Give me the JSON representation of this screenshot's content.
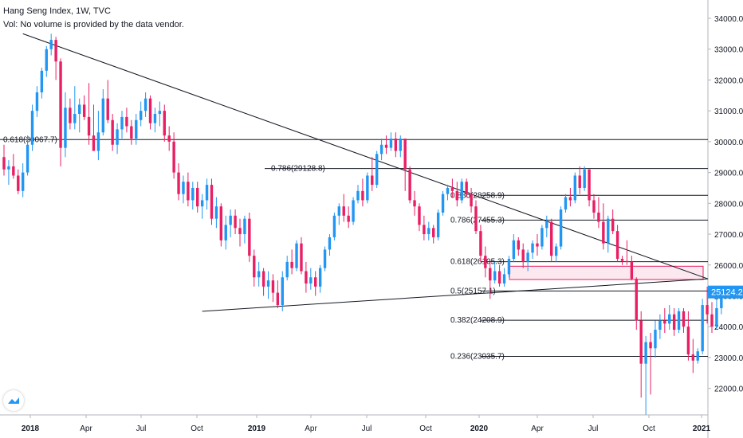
{
  "chart_data": {
    "type": "candlestick",
    "title": "Hang Seng Index, 1W, TVC",
    "subtitle": "Vol: No volume is provided by the data vendor.",
    "x_axis": {
      "tick_labels": [
        "2018",
        "Apr",
        "Jul",
        "Oct",
        "2019",
        "Apr",
        "Jul",
        "Oct",
        "2020",
        "Apr",
        "Jul",
        "Oct",
        "2021"
      ]
    },
    "y_axis": {
      "range": [
        21000,
        34600
      ],
      "tick_values": [
        22000,
        23000,
        24000,
        25000,
        26000,
        27000,
        28000,
        29000,
        30000,
        31000,
        32000,
        33000,
        34000
      ],
      "tick_labels": [
        "22000.0",
        "23000.0",
        "24000.0",
        "25000.0",
        "26000.0",
        "27000.0",
        "28000.0",
        "29000.0",
        "30000.0",
        "31000.0",
        "32000.0",
        "33000.0",
        "34000.0"
      ],
      "last_price_label": "25124.2",
      "position": "right"
    },
    "colors": {
      "up": "#2196f3",
      "down": "#e91e63",
      "line": "#131722",
      "zone_fill": "#fce4ec",
      "zone_border": "#e91e63",
      "price_tag": "#2196f3"
    },
    "fib_levels": [
      {
        "label": "0.618(30067.7)",
        "value": 30067.7
      },
      {
        "label": "0.786(29128.8)",
        "value": 29128.8
      },
      {
        "label": "0.886(28258.9)",
        "value": 28258.9
      },
      {
        "label": "0.786(27455.3)",
        "value": 27455.3
      },
      {
        "label": "0.618(26105.3)",
        "value": 26105.3
      },
      {
        "label": "0.5(25157.1)",
        "value": 25157.1
      },
      {
        "label": "0.382(24208.9)",
        "value": 24208.9
      },
      {
        "label": "0.236(23035.7)",
        "value": 23035.7
      }
    ],
    "zone": {
      "y_top": 25960,
      "y_bottom": 25530
    },
    "trendlines": [
      {
        "from": {
          "week": 4,
          "value": 33500
        },
        "to": {
          "week": 156,
          "value": 25550
        }
      },
      {
        "from": {
          "week": 42,
          "value": 24500
        },
        "to": {
          "week": 156,
          "value": 25550
        }
      }
    ],
    "candles": [
      {
        "o": 29500,
        "h": 29900,
        "l": 28900,
        "c": 29100
      },
      {
        "o": 29100,
        "h": 29400,
        "l": 28600,
        "c": 29200
      },
      {
        "o": 29200,
        "h": 29600,
        "l": 28800,
        "c": 28900
      },
      {
        "o": 28900,
        "h": 29100,
        "l": 28300,
        "c": 28400
      },
      {
        "o": 28400,
        "h": 29300,
        "l": 28200,
        "c": 29000
      },
      {
        "o": 29000,
        "h": 30200,
        "l": 28900,
        "c": 29900
      },
      {
        "o": 29900,
        "h": 31200,
        "l": 29700,
        "c": 31000
      },
      {
        "o": 31000,
        "h": 31800,
        "l": 30800,
        "c": 31600
      },
      {
        "o": 31600,
        "h": 32400,
        "l": 31400,
        "c": 32300
      },
      {
        "o": 32300,
        "h": 33100,
        "l": 32100,
        "c": 33000
      },
      {
        "o": 33000,
        "h": 33500,
        "l": 32800,
        "c": 33300
      },
      {
        "o": 33300,
        "h": 33400,
        "l": 32000,
        "c": 32600
      },
      {
        "o": 32600,
        "h": 32700,
        "l": 29200,
        "c": 29800
      },
      {
        "o": 29800,
        "h": 31600,
        "l": 29500,
        "c": 31100
      },
      {
        "o": 31100,
        "h": 31400,
        "l": 30400,
        "c": 30600
      },
      {
        "o": 30600,
        "h": 31800,
        "l": 30400,
        "c": 30900
      },
      {
        "o": 30900,
        "h": 31400,
        "l": 30300,
        "c": 31200
      },
      {
        "o": 31200,
        "h": 31500,
        "l": 30700,
        "c": 30800
      },
      {
        "o": 30800,
        "h": 31900,
        "l": 29900,
        "c": 30200
      },
      {
        "o": 30200,
        "h": 31200,
        "l": 29800,
        "c": 29700
      },
      {
        "o": 29700,
        "h": 31000,
        "l": 29400,
        "c": 30300
      },
      {
        "o": 30300,
        "h": 31700,
        "l": 30200,
        "c": 31400
      },
      {
        "o": 31400,
        "h": 32000,
        "l": 30600,
        "c": 30700
      },
      {
        "o": 30700,
        "h": 30900,
        "l": 29700,
        "c": 29900
      },
      {
        "o": 29900,
        "h": 30600,
        "l": 29600,
        "c": 30400
      },
      {
        "o": 30400,
        "h": 31000,
        "l": 30100,
        "c": 30800
      },
      {
        "o": 30800,
        "h": 31100,
        "l": 30300,
        "c": 30500
      },
      {
        "o": 30500,
        "h": 30700,
        "l": 29900,
        "c": 30100
      },
      {
        "o": 30100,
        "h": 30900,
        "l": 29900,
        "c": 30700
      },
      {
        "o": 30700,
        "h": 31300,
        "l": 30500,
        "c": 31000
      },
      {
        "o": 31000,
        "h": 31600,
        "l": 30800,
        "c": 31400
      },
      {
        "o": 31400,
        "h": 31500,
        "l": 30400,
        "c": 30600
      },
      {
        "o": 30600,
        "h": 31100,
        "l": 30300,
        "c": 30900
      },
      {
        "o": 30900,
        "h": 31300,
        "l": 30500,
        "c": 31000
      },
      {
        "o": 31000,
        "h": 31200,
        "l": 30000,
        "c": 30200
      },
      {
        "o": 30200,
        "h": 30500,
        "l": 29700,
        "c": 30000
      },
      {
        "o": 30000,
        "h": 30300,
        "l": 28800,
        "c": 29000
      },
      {
        "o": 29000,
        "h": 29300,
        "l": 28100,
        "c": 28300
      },
      {
        "o": 28300,
        "h": 28900,
        "l": 28000,
        "c": 28700
      },
      {
        "o": 28700,
        "h": 29000,
        "l": 27900,
        "c": 28100
      },
      {
        "o": 28100,
        "h": 28700,
        "l": 27800,
        "c": 28500
      },
      {
        "o": 28500,
        "h": 28700,
        "l": 27700,
        "c": 27900
      },
      {
        "o": 27900,
        "h": 28300,
        "l": 27500,
        "c": 28100
      },
      {
        "o": 28100,
        "h": 28800,
        "l": 27800,
        "c": 28600
      },
      {
        "o": 28600,
        "h": 28800,
        "l": 27300,
        "c": 27500
      },
      {
        "o": 27500,
        "h": 28200,
        "l": 27200,
        "c": 27900
      },
      {
        "o": 27900,
        "h": 28000,
        "l": 26600,
        "c": 26800
      },
      {
        "o": 26800,
        "h": 27600,
        "l": 26500,
        "c": 27300
      },
      {
        "o": 27300,
        "h": 27800,
        "l": 26900,
        "c": 27600
      },
      {
        "o": 27600,
        "h": 27800,
        "l": 27000,
        "c": 27200
      },
      {
        "o": 27200,
        "h": 27500,
        "l": 26600,
        "c": 27000
      },
      {
        "o": 27000,
        "h": 27600,
        "l": 26700,
        "c": 27500
      },
      {
        "o": 27500,
        "h": 27700,
        "l": 26100,
        "c": 26300
      },
      {
        "o": 26300,
        "h": 26500,
        "l": 25300,
        "c": 25600
      },
      {
        "o": 25600,
        "h": 26100,
        "l": 25300,
        "c": 25800
      },
      {
        "o": 25800,
        "h": 25900,
        "l": 25000,
        "c": 25300
      },
      {
        "o": 25300,
        "h": 25800,
        "l": 24900,
        "c": 25500
      },
      {
        "o": 25500,
        "h": 25700,
        "l": 24800,
        "c": 25100
      },
      {
        "o": 25100,
        "h": 25500,
        "l": 24600,
        "c": 24700
      },
      {
        "o": 24700,
        "h": 25800,
        "l": 24500,
        "c": 25600
      },
      {
        "o": 25600,
        "h": 26300,
        "l": 25500,
        "c": 26100
      },
      {
        "o": 26100,
        "h": 26500,
        "l": 25700,
        "c": 25900
      },
      {
        "o": 25900,
        "h": 26800,
        "l": 25800,
        "c": 26700
      },
      {
        "o": 26700,
        "h": 26900,
        "l": 25700,
        "c": 25800
      },
      {
        "o": 25800,
        "h": 26100,
        "l": 25100,
        "c": 25400
      },
      {
        "o": 25400,
        "h": 25900,
        "l": 25200,
        "c": 25600
      },
      {
        "o": 25600,
        "h": 25800,
        "l": 25000,
        "c": 25300
      },
      {
        "o": 25300,
        "h": 26000,
        "l": 25100,
        "c": 25900
      },
      {
        "o": 25900,
        "h": 26600,
        "l": 25800,
        "c": 26500
      },
      {
        "o": 26500,
        "h": 27000,
        "l": 26300,
        "c": 26900
      },
      {
        "o": 26900,
        "h": 27700,
        "l": 26800,
        "c": 27600
      },
      {
        "o": 27600,
        "h": 28000,
        "l": 27300,
        "c": 27900
      },
      {
        "o": 27900,
        "h": 28300,
        "l": 27400,
        "c": 27600
      },
      {
        "o": 27600,
        "h": 27900,
        "l": 27200,
        "c": 27400
      },
      {
        "o": 27400,
        "h": 28200,
        "l": 27300,
        "c": 28100
      },
      {
        "o": 28100,
        "h": 28600,
        "l": 28000,
        "c": 28400
      },
      {
        "o": 28400,
        "h": 28800,
        "l": 27900,
        "c": 28100
      },
      {
        "o": 28100,
        "h": 29000,
        "l": 28000,
        "c": 28900
      },
      {
        "o": 28900,
        "h": 29500,
        "l": 28400,
        "c": 28600
      },
      {
        "o": 28600,
        "h": 29700,
        "l": 28500,
        "c": 29600
      },
      {
        "o": 29600,
        "h": 30100,
        "l": 29400,
        "c": 29900
      },
      {
        "o": 29900,
        "h": 30200,
        "l": 29600,
        "c": 29800
      },
      {
        "o": 29800,
        "h": 30300,
        "l": 29700,
        "c": 30100
      },
      {
        "o": 30100,
        "h": 30300,
        "l": 29500,
        "c": 29700
      },
      {
        "o": 29700,
        "h": 30200,
        "l": 29500,
        "c": 30100
      },
      {
        "o": 30100,
        "h": 30100,
        "l": 28400,
        "c": 29100
      },
      {
        "o": 29100,
        "h": 29200,
        "l": 28000,
        "c": 28100
      },
      {
        "o": 28100,
        "h": 28400,
        "l": 27600,
        "c": 27900
      },
      {
        "o": 27900,
        "h": 28000,
        "l": 27100,
        "c": 27300
      },
      {
        "o": 27300,
        "h": 27600,
        "l": 26800,
        "c": 27000
      },
      {
        "o": 27000,
        "h": 27400,
        "l": 26800,
        "c": 27200
      },
      {
        "o": 27200,
        "h": 27300,
        "l": 26700,
        "c": 26900
      },
      {
        "o": 26900,
        "h": 27800,
        "l": 26800,
        "c": 27700
      },
      {
        "o": 27700,
        "h": 28400,
        "l": 27600,
        "c": 28300
      },
      {
        "o": 28300,
        "h": 28600,
        "l": 28100,
        "c": 28500
      },
      {
        "o": 28500,
        "h": 28800,
        "l": 28200,
        "c": 28400
      },
      {
        "o": 28400,
        "h": 28700,
        "l": 27900,
        "c": 28100
      },
      {
        "o": 28100,
        "h": 28800,
        "l": 28000,
        "c": 28700
      },
      {
        "o": 28700,
        "h": 28800,
        "l": 28200,
        "c": 28300
      },
      {
        "o": 28300,
        "h": 28500,
        "l": 27700,
        "c": 27900
      },
      {
        "o": 27900,
        "h": 28100,
        "l": 27000,
        "c": 27100
      },
      {
        "o": 27100,
        "h": 27300,
        "l": 26100,
        "c": 26300
      },
      {
        "o": 26300,
        "h": 26600,
        "l": 25600,
        "c": 25900
      },
      {
        "o": 25900,
        "h": 26100,
        "l": 24900,
        "c": 25500
      },
      {
        "o": 25500,
        "h": 26100,
        "l": 25400,
        "c": 25800
      },
      {
        "o": 25800,
        "h": 26000,
        "l": 25300,
        "c": 25400
      },
      {
        "o": 25400,
        "h": 25900,
        "l": 25300,
        "c": 25700
      },
      {
        "o": 25700,
        "h": 26300,
        "l": 25600,
        "c": 26200
      },
      {
        "o": 26200,
        "h": 27000,
        "l": 26100,
        "c": 26800
      },
      {
        "o": 26800,
        "h": 26900,
        "l": 26300,
        "c": 26500
      },
      {
        "o": 26500,
        "h": 26700,
        "l": 25900,
        "c": 26100
      },
      {
        "o": 26100,
        "h": 26500,
        "l": 25800,
        "c": 26400
      },
      {
        "o": 26400,
        "h": 26800,
        "l": 26200,
        "c": 26700
      },
      {
        "o": 26700,
        "h": 27000,
        "l": 26300,
        "c": 26600
      },
      {
        "o": 26600,
        "h": 27300,
        "l": 26500,
        "c": 27200
      },
      {
        "o": 27200,
        "h": 27600,
        "l": 26900,
        "c": 27400
      },
      {
        "o": 27400,
        "h": 27500,
        "l": 26100,
        "c": 26300
      },
      {
        "o": 26300,
        "h": 26700,
        "l": 26100,
        "c": 26600
      },
      {
        "o": 26600,
        "h": 27900,
        "l": 26500,
        "c": 27800
      },
      {
        "o": 27800,
        "h": 28300,
        "l": 27700,
        "c": 28200
      },
      {
        "o": 28200,
        "h": 28500,
        "l": 27900,
        "c": 28100
      },
      {
        "o": 28100,
        "h": 29000,
        "l": 28000,
        "c": 28900
      },
      {
        "o": 28900,
        "h": 29200,
        "l": 28300,
        "c": 28500
      },
      {
        "o": 28500,
        "h": 29200,
        "l": 28400,
        "c": 29100
      },
      {
        "o": 29100,
        "h": 29100,
        "l": 27900,
        "c": 28100
      },
      {
        "o": 28100,
        "h": 28300,
        "l": 27500,
        "c": 27700
      },
      {
        "o": 27700,
        "h": 28200,
        "l": 27200,
        "c": 27400
      },
      {
        "o": 27400,
        "h": 28000,
        "l": 26500,
        "c": 26700
      },
      {
        "o": 26700,
        "h": 27600,
        "l": 26400,
        "c": 27500
      },
      {
        "o": 27500,
        "h": 27800,
        "l": 27000,
        "c": 27100
      },
      {
        "o": 27100,
        "h": 27300,
        "l": 26100,
        "c": 26200
      },
      {
        "o": 26200,
        "h": 26300,
        "l": 26000,
        "c": 26130
      },
      {
        "o": 26130,
        "h": 26800,
        "l": 26000,
        "c": 26100
      },
      {
        "o": 26100,
        "h": 26300,
        "l": 25500,
        "c": 25550
      },
      {
        "o": 25550,
        "h": 25600,
        "l": 23900,
        "c": 24200
      },
      {
        "o": 24200,
        "h": 24500,
        "l": 21700,
        "c": 22800
      },
      {
        "o": 22800,
        "h": 23700,
        "l": 21150,
        "c": 23500
      },
      {
        "o": 23500,
        "h": 23800,
        "l": 21800,
        "c": 23300
      },
      {
        "o": 23300,
        "h": 24200,
        "l": 23000,
        "c": 23900
      },
      {
        "o": 23900,
        "h": 24400,
        "l": 23600,
        "c": 24200
      },
      {
        "o": 24200,
        "h": 24600,
        "l": 23800,
        "c": 24100
      },
      {
        "o": 24100,
        "h": 24700,
        "l": 23900,
        "c": 24400
      },
      {
        "o": 24400,
        "h": 24600,
        "l": 23700,
        "c": 23900
      },
      {
        "o": 23900,
        "h": 24600,
        "l": 23800,
        "c": 24500
      },
      {
        "o": 24500,
        "h": 24600,
        "l": 23800,
        "c": 24000
      },
      {
        "o": 24000,
        "h": 24500,
        "l": 22900,
        "c": 23100
      },
      {
        "o": 23100,
        "h": 23600,
        "l": 22500,
        "c": 22900
      },
      {
        "o": 22900,
        "h": 23300,
        "l": 22800,
        "c": 23200
      },
      {
        "o": 23200,
        "h": 24900,
        "l": 23100,
        "c": 24700
      },
      {
        "o": 24700,
        "h": 25300,
        "l": 24100,
        "c": 24400
      },
      {
        "o": 24400,
        "h": 24800,
        "l": 23800,
        "c": 24000
      },
      {
        "o": 24000,
        "h": 24900,
        "l": 23900,
        "c": 24600
      },
      {
        "o": 24600,
        "h": 25200,
        "l": 24400,
        "c": 25124.2
      }
    ]
  }
}
